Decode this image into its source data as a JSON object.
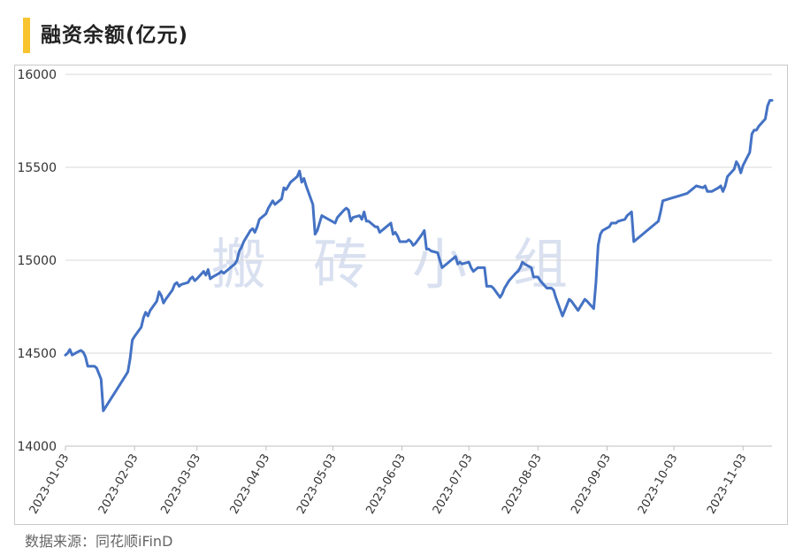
{
  "title": "融资余额(亿元)",
  "source": "数据来源：同花顺iFinD",
  "watermark": [
    "搬",
    "砖",
    "小",
    "组"
  ],
  "colors": {
    "line": "#4472c4",
    "accent": "#f7c42d",
    "grid": "#d9d9d9"
  },
  "chart_data": {
    "type": "line",
    "title": "融资余额(亿元)",
    "xlabel": "",
    "ylabel": "",
    "ylim": [
      14000,
      16000
    ],
    "yticks": [
      14000,
      14500,
      15000,
      15500,
      16000
    ],
    "grid": true,
    "legend": "none",
    "xticks": [
      "2023-01-03",
      "2023-02-03",
      "2023-03-03",
      "2023-04-03",
      "2023-05-03",
      "2023-06-03",
      "2023-07-03",
      "2023-08-03",
      "2023-09-03",
      "2023-10-03",
      "2023-11-03"
    ],
    "series": [
      {
        "name": "",
        "points": [
          [
            "2023-01-03",
            14490
          ],
          [
            "2023-01-04",
            14500
          ],
          [
            "2023-01-05",
            14520
          ],
          [
            "2023-01-06",
            14490
          ],
          [
            "2023-01-09",
            14510
          ],
          [
            "2023-01-10",
            14515
          ],
          [
            "2023-01-11",
            14505
          ],
          [
            "2023-01-12",
            14480
          ],
          [
            "2023-01-13",
            14430
          ],
          [
            "2023-01-16",
            14430
          ],
          [
            "2023-01-17",
            14420
          ],
          [
            "2023-01-18",
            14390
          ],
          [
            "2023-01-19",
            14360
          ],
          [
            "2023-01-20",
            14190
          ],
          [
            "2023-01-30",
            14380
          ],
          [
            "2023-01-31",
            14400
          ],
          [
            "2023-02-01",
            14470
          ],
          [
            "2023-02-02",
            14570
          ],
          [
            "2023-02-03",
            14590
          ],
          [
            "2023-02-06",
            14640
          ],
          [
            "2023-02-07",
            14690
          ],
          [
            "2023-02-08",
            14720
          ],
          [
            "2023-02-09",
            14700
          ],
          [
            "2023-02-10",
            14730
          ],
          [
            "2023-02-13",
            14780
          ],
          [
            "2023-02-14",
            14830
          ],
          [
            "2023-02-15",
            14810
          ],
          [
            "2023-02-16",
            14770
          ],
          [
            "2023-02-17",
            14790
          ],
          [
            "2023-02-20",
            14840
          ],
          [
            "2023-02-21",
            14870
          ],
          [
            "2023-02-22",
            14880
          ],
          [
            "2023-02-23",
            14860
          ],
          [
            "2023-02-24",
            14870
          ],
          [
            "2023-02-27",
            14880
          ],
          [
            "2023-02-28",
            14900
          ],
          [
            "2023-03-01",
            14910
          ],
          [
            "2023-03-02",
            14890
          ],
          [
            "2023-03-03",
            14900
          ],
          [
            "2023-03-06",
            14940
          ],
          [
            "2023-03-07",
            14920
          ],
          [
            "2023-03-08",
            14950
          ],
          [
            "2023-03-09",
            14900
          ],
          [
            "2023-03-10",
            14910
          ],
          [
            "2023-03-13",
            14930
          ],
          [
            "2023-03-14",
            14940
          ],
          [
            "2023-03-15",
            14930
          ],
          [
            "2023-03-16",
            14940
          ],
          [
            "2023-03-17",
            14950
          ],
          [
            "2023-03-20",
            14980
          ],
          [
            "2023-03-21",
            15000
          ],
          [
            "2023-03-22",
            15050
          ],
          [
            "2023-03-23",
            15070
          ],
          [
            "2023-03-24",
            15100
          ],
          [
            "2023-03-27",
            15160
          ],
          [
            "2023-03-28",
            15170
          ],
          [
            "2023-03-29",
            15150
          ],
          [
            "2023-03-30",
            15180
          ],
          [
            "2023-03-31",
            15220
          ],
          [
            "2023-04-03",
            15250
          ],
          [
            "2023-04-04",
            15280
          ],
          [
            "2023-04-06",
            15320
          ],
          [
            "2023-04-07",
            15300
          ],
          [
            "2023-04-10",
            15330
          ],
          [
            "2023-04-11",
            15390
          ],
          [
            "2023-04-12",
            15380
          ],
          [
            "2023-04-13",
            15400
          ],
          [
            "2023-04-14",
            15420
          ],
          [
            "2023-04-17",
            15450
          ],
          [
            "2023-04-18",
            15480
          ],
          [
            "2023-04-19",
            15420
          ],
          [
            "2023-04-20",
            15440
          ],
          [
            "2023-04-21",
            15400
          ],
          [
            "2023-04-24",
            15300
          ],
          [
            "2023-04-25",
            15140
          ],
          [
            "2023-04-26",
            15160
          ],
          [
            "2023-04-27",
            15200
          ],
          [
            "2023-04-28",
            15240
          ],
          [
            "2023-05-04",
            15200
          ],
          [
            "2023-05-05",
            15230
          ],
          [
            "2023-05-08",
            15270
          ],
          [
            "2023-05-09",
            15280
          ],
          [
            "2023-05-10",
            15270
          ],
          [
            "2023-05-11",
            15210
          ],
          [
            "2023-05-12",
            15230
          ],
          [
            "2023-05-15",
            15240
          ],
          [
            "2023-05-16",
            15220
          ],
          [
            "2023-05-17",
            15260
          ],
          [
            "2023-05-18",
            15210
          ],
          [
            "2023-05-19",
            15210
          ],
          [
            "2023-05-22",
            15180
          ],
          [
            "2023-05-23",
            15180
          ],
          [
            "2023-05-24",
            15150
          ],
          [
            "2023-05-25",
            15160
          ],
          [
            "2023-05-26",
            15170
          ],
          [
            "2023-05-29",
            15200
          ],
          [
            "2023-05-30",
            15140
          ],
          [
            "2023-05-31",
            15150
          ],
          [
            "2023-06-01",
            15130
          ],
          [
            "2023-06-02",
            15100
          ],
          [
            "2023-06-05",
            15100
          ],
          [
            "2023-06-06",
            15110
          ],
          [
            "2023-06-07",
            15100
          ],
          [
            "2023-06-08",
            15080
          ],
          [
            "2023-06-09",
            15090
          ],
          [
            "2023-06-12",
            15140
          ],
          [
            "2023-06-13",
            15160
          ],
          [
            "2023-06-14",
            15060
          ],
          [
            "2023-06-15",
            15060
          ],
          [
            "2023-06-16",
            15050
          ],
          [
            "2023-06-19",
            15040
          ],
          [
            "2023-06-20",
            15000
          ],
          [
            "2023-06-21",
            14960
          ],
          [
            "2023-06-26",
            15010
          ],
          [
            "2023-06-27",
            15020
          ],
          [
            "2023-06-28",
            14980
          ],
          [
            "2023-06-29",
            14990
          ],
          [
            "2023-06-30",
            14980
          ],
          [
            "2023-07-03",
            14990
          ],
          [
            "2023-07-04",
            14960
          ],
          [
            "2023-07-05",
            14940
          ],
          [
            "2023-07-06",
            14950
          ],
          [
            "2023-07-07",
            14960
          ],
          [
            "2023-07-10",
            14960
          ],
          [
            "2023-07-11",
            14860
          ],
          [
            "2023-07-12",
            14860
          ],
          [
            "2023-07-13",
            14860
          ],
          [
            "2023-07-14",
            14850
          ],
          [
            "2023-07-17",
            14800
          ],
          [
            "2023-07-18",
            14820
          ],
          [
            "2023-07-19",
            14850
          ],
          [
            "2023-07-20",
            14870
          ],
          [
            "2023-07-21",
            14890
          ],
          [
            "2023-07-24",
            14930
          ],
          [
            "2023-07-25",
            14940
          ],
          [
            "2023-07-26",
            14960
          ],
          [
            "2023-07-27",
            14990
          ],
          [
            "2023-07-28",
            14980
          ],
          [
            "2023-07-31",
            14960
          ],
          [
            "2023-08-01",
            14910
          ],
          [
            "2023-08-02",
            14910
          ],
          [
            "2023-08-03",
            14910
          ],
          [
            "2023-08-04",
            14890
          ],
          [
            "2023-08-07",
            14850
          ],
          [
            "2023-08-08",
            14850
          ],
          [
            "2023-08-09",
            14850
          ],
          [
            "2023-08-10",
            14840
          ],
          [
            "2023-08-11",
            14800
          ],
          [
            "2023-08-14",
            14700
          ],
          [
            "2023-08-15",
            14730
          ],
          [
            "2023-08-16",
            14760
          ],
          [
            "2023-08-17",
            14790
          ],
          [
            "2023-08-18",
            14780
          ],
          [
            "2023-08-21",
            14730
          ],
          [
            "2023-08-22",
            14750
          ],
          [
            "2023-08-23",
            14770
          ],
          [
            "2023-08-24",
            14790
          ],
          [
            "2023-08-25",
            14780
          ],
          [
            "2023-08-28",
            14740
          ],
          [
            "2023-08-29",
            14880
          ],
          [
            "2023-08-30",
            15080
          ],
          [
            "2023-08-31",
            15140
          ],
          [
            "2023-09-01",
            15160
          ],
          [
            "2023-09-04",
            15180
          ],
          [
            "2023-09-05",
            15200
          ],
          [
            "2023-09-06",
            15200
          ],
          [
            "2023-09-07",
            15200
          ],
          [
            "2023-09-08",
            15210
          ],
          [
            "2023-09-11",
            15220
          ],
          [
            "2023-09-12",
            15240
          ],
          [
            "2023-09-13",
            15250
          ],
          [
            "2023-09-14",
            15260
          ],
          [
            "2023-09-15",
            15100
          ],
          [
            "2023-09-25",
            15200
          ],
          [
            "2023-09-26",
            15210
          ],
          [
            "2023-09-27",
            15260
          ],
          [
            "2023-09-28",
            15320
          ],
          [
            "2023-10-09",
            15360
          ],
          [
            "2023-10-10",
            15370
          ],
          [
            "2023-10-11",
            15380
          ],
          [
            "2023-10-12",
            15390
          ],
          [
            "2023-10-13",
            15400
          ],
          [
            "2023-10-16",
            15390
          ],
          [
            "2023-10-17",
            15400
          ],
          [
            "2023-10-18",
            15370
          ],
          [
            "2023-10-19",
            15370
          ],
          [
            "2023-10-20",
            15370
          ],
          [
            "2023-10-23",
            15390
          ],
          [
            "2023-10-24",
            15400
          ],
          [
            "2023-10-25",
            15370
          ],
          [
            "2023-10-26",
            15400
          ],
          [
            "2023-10-27",
            15450
          ],
          [
            "2023-10-30",
            15490
          ],
          [
            "2023-10-31",
            15530
          ],
          [
            "2023-11-01",
            15510
          ],
          [
            "2023-11-02",
            15470
          ],
          [
            "2023-11-03",
            15510
          ],
          [
            "2023-11-06",
            15580
          ],
          [
            "2023-11-07",
            15680
          ],
          [
            "2023-11-08",
            15700
          ],
          [
            "2023-11-09",
            15700
          ],
          [
            "2023-11-10",
            15720
          ],
          [
            "2023-11-13",
            15760
          ],
          [
            "2023-11-14",
            15830
          ],
          [
            "2023-11-15",
            15860
          ],
          [
            "2023-11-16",
            15860
          ]
        ]
      }
    ]
  }
}
